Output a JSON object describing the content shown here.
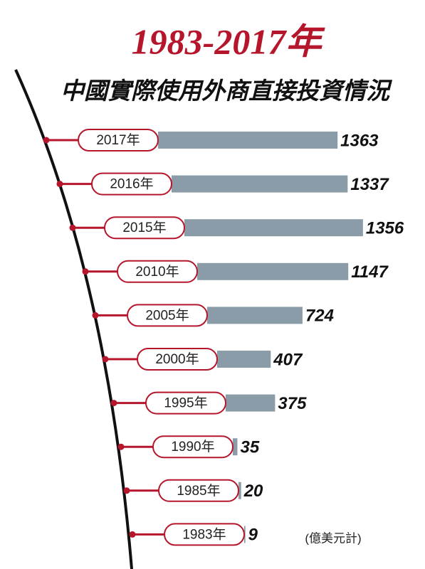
{
  "chart_data": {
    "type": "bar",
    "orientation": "horizontal",
    "title": "1983-2017年",
    "subtitle": "中國實際使用外商直接投資情況",
    "unit_note": "(億美元計)",
    "categories": [
      "2017年",
      "2016年",
      "2015年",
      "2010年",
      "2005年",
      "2000年",
      "1995年",
      "1990年",
      "1985年",
      "1983年"
    ],
    "values": [
      1363,
      1337,
      1356,
      1147,
      724,
      407,
      375,
      35,
      20,
      9
    ],
    "color": "#8a9ca8"
  }
}
